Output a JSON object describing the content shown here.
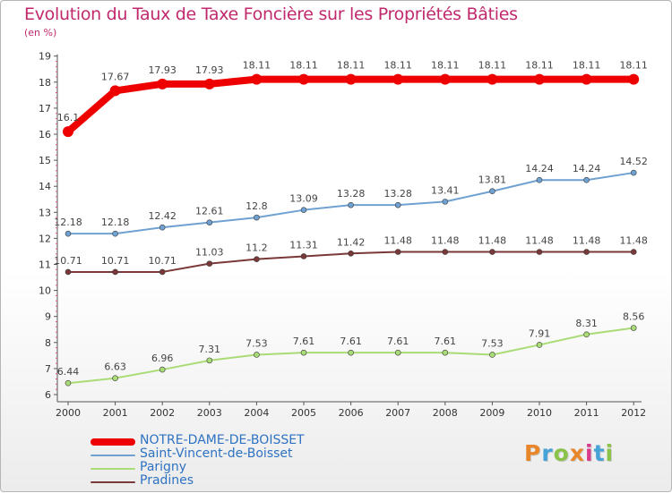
{
  "title": "Evolution du Taux de Taxe Foncière sur les Propriétés Bâties",
  "subtitle": "(en %)",
  "logo": {
    "text": "Proxiti",
    "colors": [
      "#e8862a",
      "#46a3d8",
      "#8bc34a",
      "#e8862a",
      "#d83b8c",
      "#46a3d8",
      "#8bc34a"
    ]
  },
  "chart_data": {
    "type": "line",
    "title": "Evolution du Taux de Taxe Foncière sur les Propriétés Bâties",
    "ylabel": "(en %)",
    "xlabel": "",
    "x": [
      "2000",
      "2001",
      "2002",
      "2003",
      "2004",
      "2005",
      "2006",
      "2007",
      "2008",
      "2009",
      "2010",
      "2011",
      "2012"
    ],
    "ylim": [
      6,
      19
    ],
    "yticks": [
      "6",
      "7",
      "8",
      "9",
      "10",
      "11",
      "12",
      "13",
      "14",
      "15",
      "16",
      "17",
      "18",
      "19"
    ],
    "grid": false,
    "legend": "bottom-left",
    "series": [
      {
        "name": "NOTRE-DAME-DE-BOISSET",
        "color": "#ee0000",
        "values": [
          16.1,
          17.67,
          17.93,
          17.93,
          18.11,
          18.11,
          18.11,
          18.11,
          18.11,
          18.11,
          18.11,
          18.11,
          18.11
        ],
        "labels": [
          "16.1",
          "17.67",
          "17.93",
          "17.93",
          "18.11",
          "18.11",
          "18.11",
          "18.11",
          "18.11",
          "18.11",
          "18.11",
          "18.11",
          "18.11"
        ]
      },
      {
        "name": "Saint-Vincent-de-Boisset",
        "color": "#6fa1d2",
        "values": [
          12.18,
          12.18,
          12.42,
          12.61,
          12.8,
          13.09,
          13.28,
          13.28,
          13.41,
          13.81,
          14.24,
          14.24,
          14.52
        ],
        "labels": [
          "12.18",
          "12.18",
          "12.42",
          "12.61",
          "12.8",
          "13.09",
          "13.28",
          "13.28",
          "13.41",
          "13.81",
          "14.24",
          "14.24",
          "14.52"
        ]
      },
      {
        "name": "Parigny",
        "color": "#a9dc76",
        "values": [
          6.44,
          6.63,
          6.96,
          7.31,
          7.53,
          7.61,
          7.61,
          7.61,
          7.61,
          7.53,
          7.91,
          8.31,
          8.56
        ],
        "labels": [
          "6.44",
          "6.63",
          "6.96",
          "7.31",
          "7.53",
          "7.61",
          "7.61",
          "7.61",
          "7.61",
          "7.53",
          "7.91",
          "8.31",
          "8.56"
        ]
      },
      {
        "name": "Pradines",
        "color": "#7a3838",
        "values": [
          10.71,
          10.71,
          10.71,
          11.03,
          11.2,
          11.31,
          11.42,
          11.48,
          11.48,
          11.48,
          11.48,
          11.48,
          11.48
        ],
        "labels": [
          "10.71",
          "10.71",
          "10.71",
          "11.03",
          "11.2",
          "11.31",
          "11.42",
          "11.48",
          "11.48",
          "11.48",
          "11.48",
          "11.48",
          "11.48"
        ]
      }
    ]
  }
}
